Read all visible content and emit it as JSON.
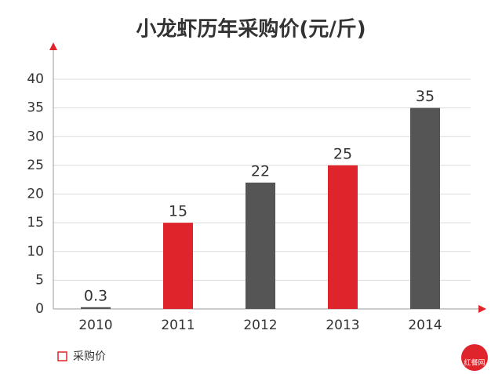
{
  "chart_data": {
    "type": "bar",
    "title": "小龙虾历年采购价(元/斤)",
    "categories": [
      "2010",
      "2011",
      "2012",
      "2013",
      "2014"
    ],
    "series": [
      {
        "name": "采购价",
        "color": "#e0242b",
        "values": [
          0.3,
          15,
          22,
          25,
          35
        ],
        "colors": [
          "#555555",
          "#e0242b",
          "#555555",
          "#e0242b",
          "#555555"
        ]
      }
    ],
    "ylim": [
      0,
      40
    ],
    "yticks": [
      0,
      5,
      10,
      15,
      20,
      25,
      30,
      35,
      40
    ],
    "grid": true,
    "legend": "bottom-left",
    "watermark": "红餐网"
  }
}
